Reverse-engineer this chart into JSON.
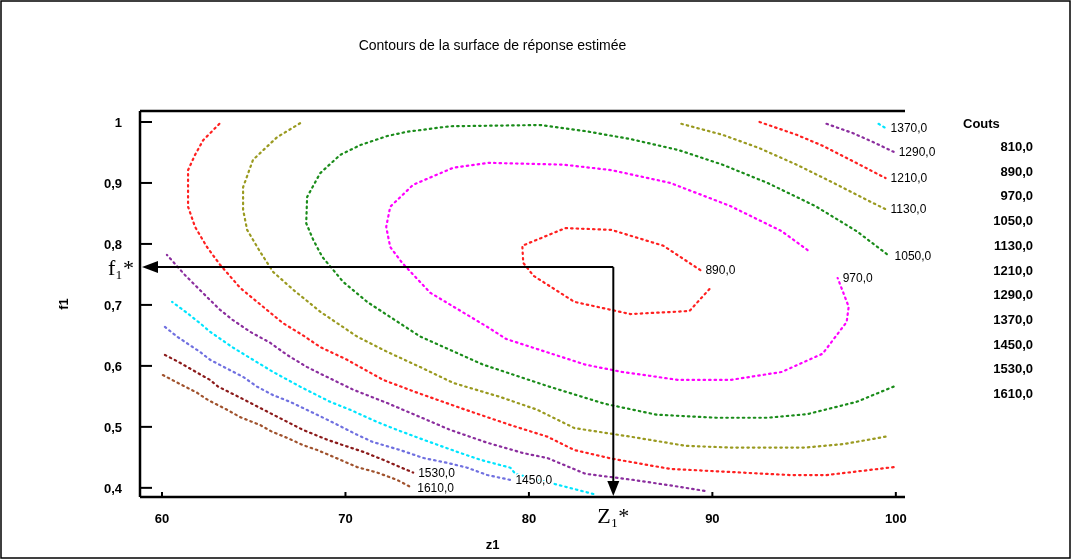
{
  "chart_data": {
    "type": "line",
    "title": "Contours de la surface de réponse estimée",
    "xlabel": "z1",
    "ylabel": "f1",
    "legend_title": "Couts",
    "line_style": "dotted",
    "grid": false,
    "xlim": [
      58.8,
      100.5
    ],
    "ylim": [
      0.385,
      1.018
    ],
    "xticks": [
      60,
      70,
      80,
      90,
      100
    ],
    "yticks": [
      {
        "value": 0.4,
        "label": "0,4"
      },
      {
        "value": 0.5,
        "label": "0,5"
      },
      {
        "value": 0.6,
        "label": "0,6"
      },
      {
        "value": 0.7,
        "label": "0,7"
      },
      {
        "value": 0.8,
        "label": "0,8"
      },
      {
        "value": 0.9,
        "label": "0,9"
      },
      {
        "value": 1,
        "label": "1"
      }
    ],
    "series": [
      {
        "name": "890,0",
        "color": "#ff2020",
        "x": [
          89.84,
          88.75,
          85.53,
          82.48,
          80.24,
          79.69,
          79.64,
          81.99,
          84.5,
          87.33,
          89.35
        ],
        "values": [
          0.726,
          0.69,
          0.685,
          0.705,
          0.748,
          0.769,
          0.797,
          0.826,
          0.823,
          0.797,
          0.757
        ]
      },
      {
        "name": "970,0",
        "color": "#ff00ff",
        "x": [
          95.19,
          93.77,
          90.99,
          87.71,
          84.5,
          81.88,
          77.79,
          75.88,
          73.69,
          72.44,
          72.22,
          72.44,
          73.09,
          74.62,
          77.73,
          78.77,
          83.08,
          85.1,
          88.15,
          90.99,
          93.77,
          96.01,
          97.32,
          97.43,
          96.83
        ],
        "values": [
          0.79,
          0.821,
          0.862,
          0.9,
          0.921,
          0.93,
          0.933,
          0.925,
          0.897,
          0.861,
          0.828,
          0.795,
          0.769,
          0.72,
          0.664,
          0.644,
          0.602,
          0.59,
          0.577,
          0.577,
          0.59,
          0.62,
          0.672,
          0.697,
          0.744
        ]
      },
      {
        "name": "1050,0",
        "color": "#1a8c1a",
        "x": [
          99.88,
          97.86,
          95.19,
          93.01,
          90.17,
          86.95,
          84.11,
          81.0,
          77.51,
          74.08,
          71.18,
          69.87,
          68.73,
          68.24,
          67.86,
          67.91,
          68.62,
          69.71,
          70.8,
          72.28,
          73.37,
          75.71,
          80.62,
          83.08,
          85.53,
          88.15,
          90.55,
          93.01,
          95.62,
          97.86,
          99.66
        ],
        "values": [
          0.566,
          0.541,
          0.521,
          0.515,
          0.515,
          0.52,
          0.538,
          0.567,
          0.602,
          0.648,
          0.705,
          0.738,
          0.779,
          0.807,
          0.834,
          0.877,
          0.916,
          0.946,
          0.962,
          0.977,
          0.984,
          0.993,
          0.995,
          0.985,
          0.972,
          0.954,
          0.93,
          0.9,
          0.862,
          0.821,
          0.78
        ]
      },
      {
        "name": "1130,0",
        "color": "#9a9a20",
        "x": [
          99.44,
          97.21,
          95.02,
          90.99,
          88.53,
          85.53,
          82.48,
          80.46,
          78.44,
          75.88,
          74.08,
          72.28,
          70.64,
          68.62,
          67.15,
          66.06,
          65.35,
          64.64,
          64.42,
          64.42,
          64.96,
          66.27,
          67.53,
          null,
          88.31,
          90.55,
          92.57,
          94.59,
          96.61,
          98.63,
          99.44
        ],
        "values": [
          0.484,
          0.472,
          0.466,
          0.466,
          0.469,
          0.484,
          0.498,
          0.528,
          0.549,
          0.572,
          0.598,
          0.623,
          0.648,
          0.689,
          0.725,
          0.754,
          0.787,
          0.823,
          0.856,
          0.893,
          0.938,
          0.975,
          0.998,
          null,
          0.997,
          0.979,
          0.957,
          0.93,
          0.9,
          0.869,
          0.857
        ]
      },
      {
        "name": "1210,0",
        "color": "#ff2020",
        "x": [
          99.88,
          97.64,
          96.22,
          94.21,
          90.99,
          87.71,
          84.5,
          82.48,
          81.0,
          78.99,
          76.26,
          73.91,
          72.06,
          70.09,
          68.62,
          67.64,
          66.6,
          65.51,
          64.26,
          63.16,
          62.45,
          61.8,
          61.42,
          61.42,
          61.8,
          62.24,
          63.16,
          null,
          92.57,
          94.59,
          96.01,
          97.64,
          99.44
        ],
        "values": [
          0.434,
          0.426,
          0.421,
          0.421,
          0.426,
          0.431,
          0.448,
          0.462,
          0.484,
          0.503,
          0.531,
          0.556,
          0.577,
          0.61,
          0.631,
          0.651,
          0.67,
          0.697,
          0.728,
          0.766,
          0.795,
          0.828,
          0.861,
          0.921,
          0.946,
          0.97,
          0.998,
          null,
          1.0,
          0.979,
          0.961,
          0.936,
          0.908
        ]
      },
      {
        "name": "1290,0",
        "color": "#8b2e9e",
        "x": [
          89.57,
          88.15,
          85.7,
          83.08,
          81.0,
          79.69,
          77.73,
          75.71,
          74.08,
          72.28,
          70.42,
          68.78,
          67.91,
          66.82,
          65.89,
          64.8,
          63.87,
          63.16,
          62.35,
          61.25,
          60.27,
          null,
          96.22,
          97.64,
          98.84,
          99.88
        ],
        "values": [
          0.395,
          0.402,
          0.413,
          0.423,
          0.449,
          0.457,
          0.474,
          0.495,
          0.516,
          0.539,
          0.561,
          0.585,
          0.598,
          0.618,
          0.638,
          0.656,
          0.675,
          0.692,
          0.716,
          0.749,
          0.782,
          null,
          0.997,
          0.982,
          0.966,
          0.951
        ]
      },
      {
        "name": "1370,0",
        "color": "#00e5ff",
        "x": [
          83.51,
          79.26,
          78.99,
          77.35,
          76.09,
          74.24,
          72.82,
          71.73,
          70.26,
          69.17,
          67.53,
          66.06,
          64.8,
          63.87,
          62.62,
          62.07,
          61.36,
          60.55,
          null,
          99.06,
          99.44
        ],
        "values": [
          0.39,
          0.423,
          0.433,
          0.446,
          0.459,
          0.479,
          0.495,
          0.508,
          0.528,
          0.541,
          0.566,
          0.59,
          0.613,
          0.63,
          0.656,
          0.67,
          0.687,
          0.705,
          null,
          0.997,
          0.99
        ]
      },
      {
        "name": "1450,0",
        "color": "#7070e0",
        "x": [
          60.16,
          60.82,
          62.07,
          62.62,
          63.71,
          64.42,
          65.18,
          66.06,
          66.98,
          68.24,
          69.33,
          70.64,
          71.51,
          72.98,
          74.24,
          75.55,
          76.64,
          77.73,
          78.99
        ],
        "values": [
          0.664,
          0.648,
          0.623,
          0.61,
          0.593,
          0.582,
          0.566,
          0.552,
          0.541,
          0.523,
          0.507,
          0.487,
          0.475,
          0.462,
          0.449,
          0.441,
          0.433,
          0.421,
          0.413
        ]
      },
      {
        "name": "1530,0",
        "color": "#8b1a1a",
        "x": [
          60.16,
          60.87,
          61.91,
          62.62,
          63.06,
          64.26,
          65.35,
          66.06,
          67.69,
          69.0,
          69.87,
          70.97,
          72.06,
          72.98,
          73.69
        ],
        "values": [
          0.618,
          0.607,
          0.589,
          0.577,
          0.566,
          0.548,
          0.531,
          0.52,
          0.495,
          0.479,
          0.47,
          0.459,
          0.446,
          0.434,
          0.425
        ]
      },
      {
        "name": "1610,0",
        "color": "#a0522d",
        "x": [
          60.05,
          60.87,
          61.91,
          62.51,
          63.55,
          64.26,
          65.35,
          66.0,
          66.82,
          67.69,
          68.46,
          69.33,
          70.64,
          71.73,
          72.82,
          73.64
        ],
        "values": [
          0.585,
          0.572,
          0.556,
          0.544,
          0.528,
          0.516,
          0.503,
          0.492,
          0.482,
          0.47,
          0.462,
          0.451,
          0.434,
          0.425,
          0.413,
          0.4
        ]
      }
    ],
    "ref_lines": [
      {
        "axis": "y",
        "value": 0.762,
        "label": "f₁*"
      },
      {
        "axis": "x",
        "value": 84.6,
        "label": "Z₁*"
      }
    ],
    "annotations": [
      "810,0",
      "890,0",
      "970,0",
      "1050,0",
      "1130,0",
      "1210,0",
      "1290,0",
      "1370,0",
      "1450,0",
      "1530,0",
      "1610,0"
    ]
  }
}
